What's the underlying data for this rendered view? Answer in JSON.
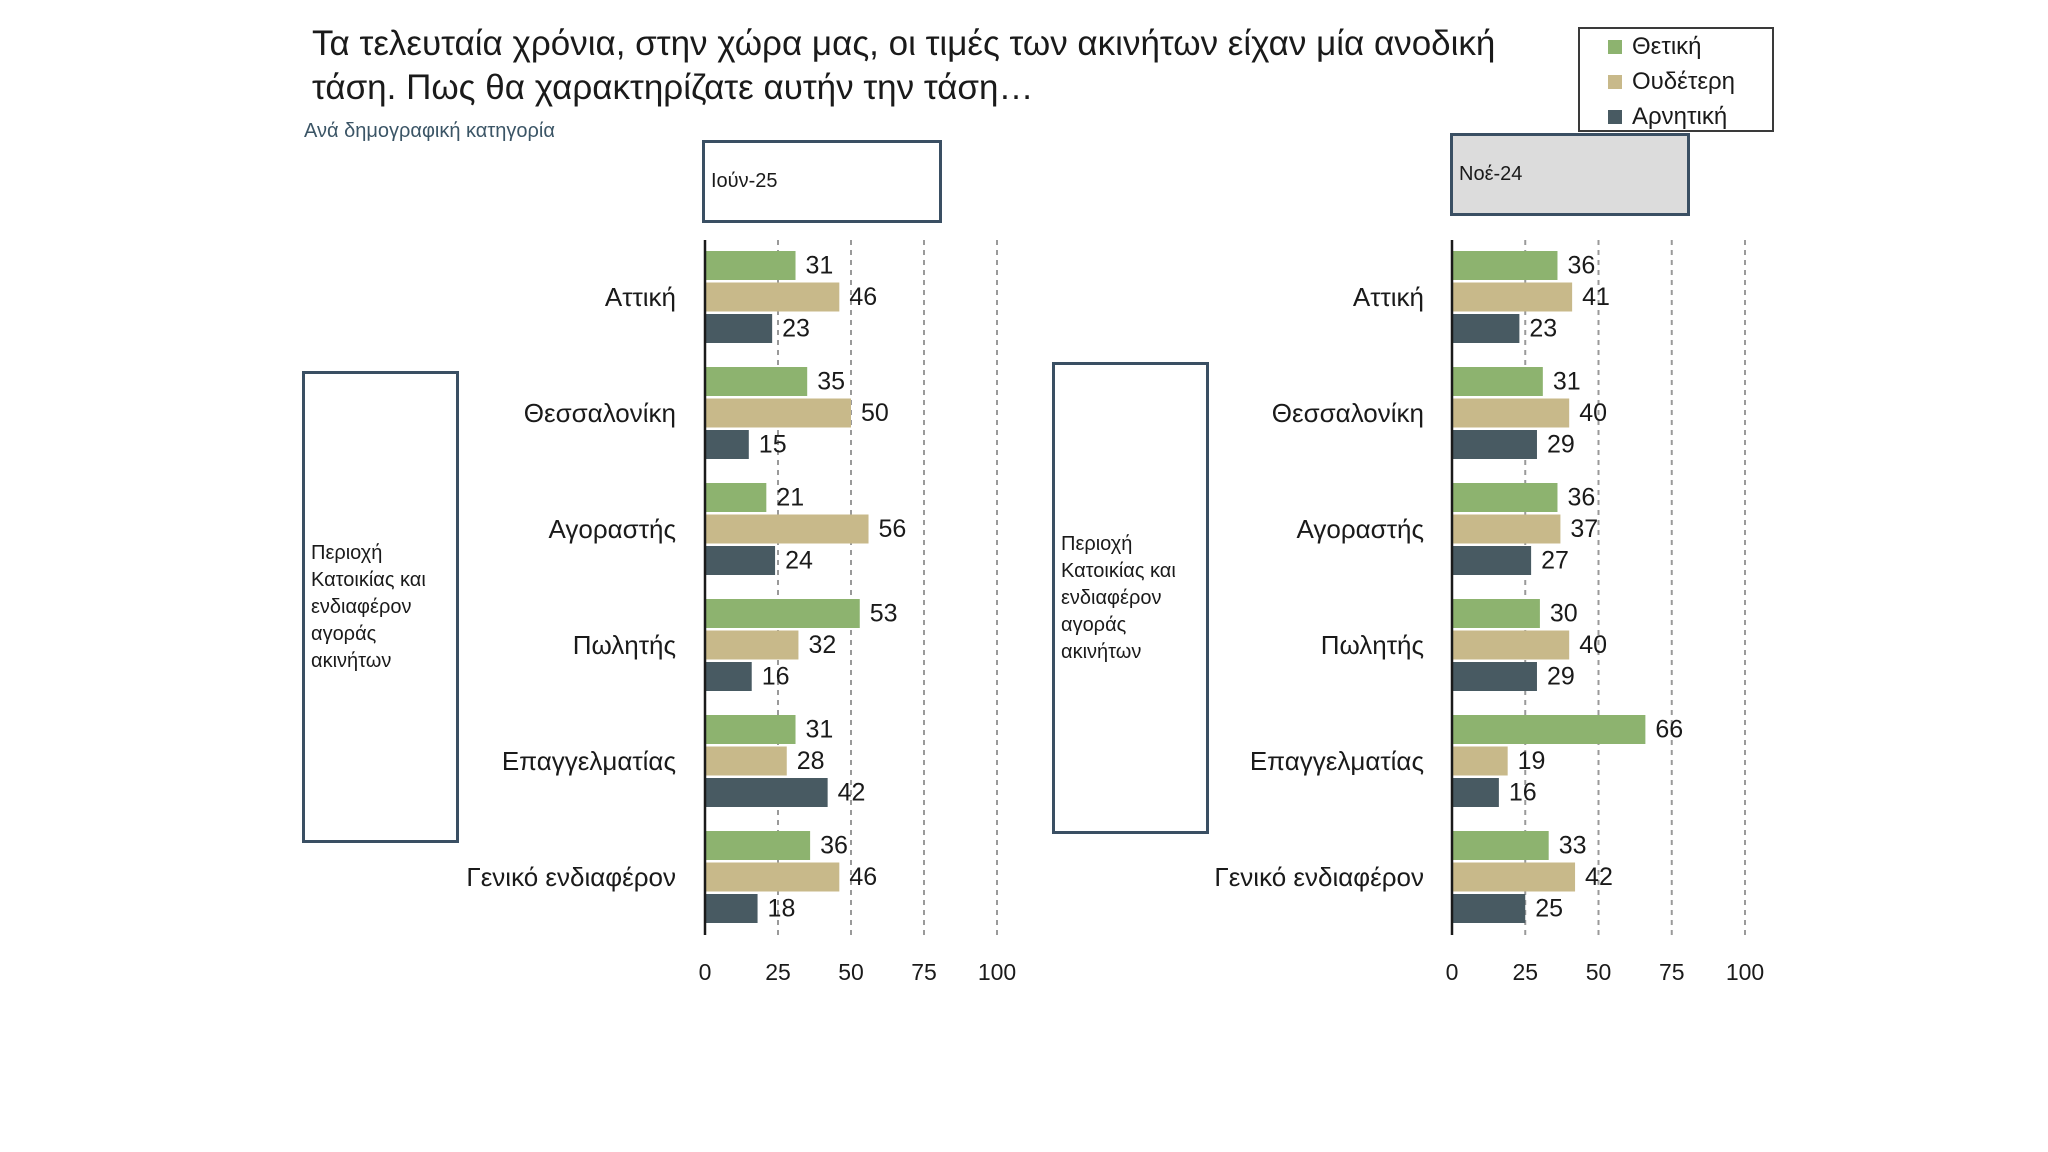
{
  "header": {
    "title": "Τα τελευταία χρόνια, στην χώρα μας, οι τιμές των ακινήτων είχαν μία ανοδική τάση. Πως θα χαρακτηρίζατε αυτήν την τάση…",
    "subtitle": "Ανά δημογραφική κατηγορία"
  },
  "legend": {
    "items": [
      {
        "label": "Θετική",
        "color": "#8db36f"
      },
      {
        "label": "Ουδέτερη",
        "color": "#c8b98a"
      },
      {
        "label": "Αρνητική",
        "color": "#485a62"
      }
    ]
  },
  "panels": [
    {
      "tag": "Ιούν-25",
      "group_label": "Περιοχή Κατοικίας και ενδιαφέρον αγοράς ακινήτων"
    },
    {
      "tag": "Νοέ-24",
      "group_label": "Περιοχή Κατοικίας και ενδιαφέρον αγοράς ακινήτων"
    }
  ],
  "chart_data": [
    {
      "type": "bar",
      "orientation": "horizontal",
      "panel": "Ιούν-25",
      "categories": [
        "Αττική",
        "Θεσσαλονίκη",
        "Αγοραστής",
        "Πωλητής",
        "Επαγγελματίας",
        "Γενικό ενδιαφέρον"
      ],
      "series": [
        {
          "name": "Θετική",
          "values": [
            31,
            35,
            21,
            53,
            31,
            36
          ]
        },
        {
          "name": "Ουδέτερη",
          "values": [
            46,
            50,
            56,
            32,
            28,
            46
          ]
        },
        {
          "name": "Αρνητική",
          "values": [
            23,
            15,
            24,
            16,
            42,
            18
          ]
        }
      ],
      "xlim": [
        0,
        100
      ],
      "xticks": [
        0,
        25,
        50,
        75,
        100
      ],
      "grid": "dashed vertical"
    },
    {
      "type": "bar",
      "orientation": "horizontal",
      "panel": "Νοέ-24",
      "categories": [
        "Αττική",
        "Θεσσαλονίκη",
        "Αγοραστής",
        "Πωλητής",
        "Επαγγελματίας",
        "Γενικό ενδιαφέρον"
      ],
      "series": [
        {
          "name": "Θετική",
          "values": [
            36,
            31,
            36,
            30,
            66,
            33
          ]
        },
        {
          "name": "Ουδέτερη",
          "values": [
            41,
            40,
            37,
            40,
            19,
            42
          ]
        },
        {
          "name": "Αρνητική",
          "values": [
            23,
            29,
            27,
            29,
            16,
            25
          ]
        }
      ],
      "xlim": [
        0,
        100
      ],
      "xticks": [
        0,
        25,
        50,
        75,
        100
      ],
      "grid": "dashed vertical"
    }
  ]
}
